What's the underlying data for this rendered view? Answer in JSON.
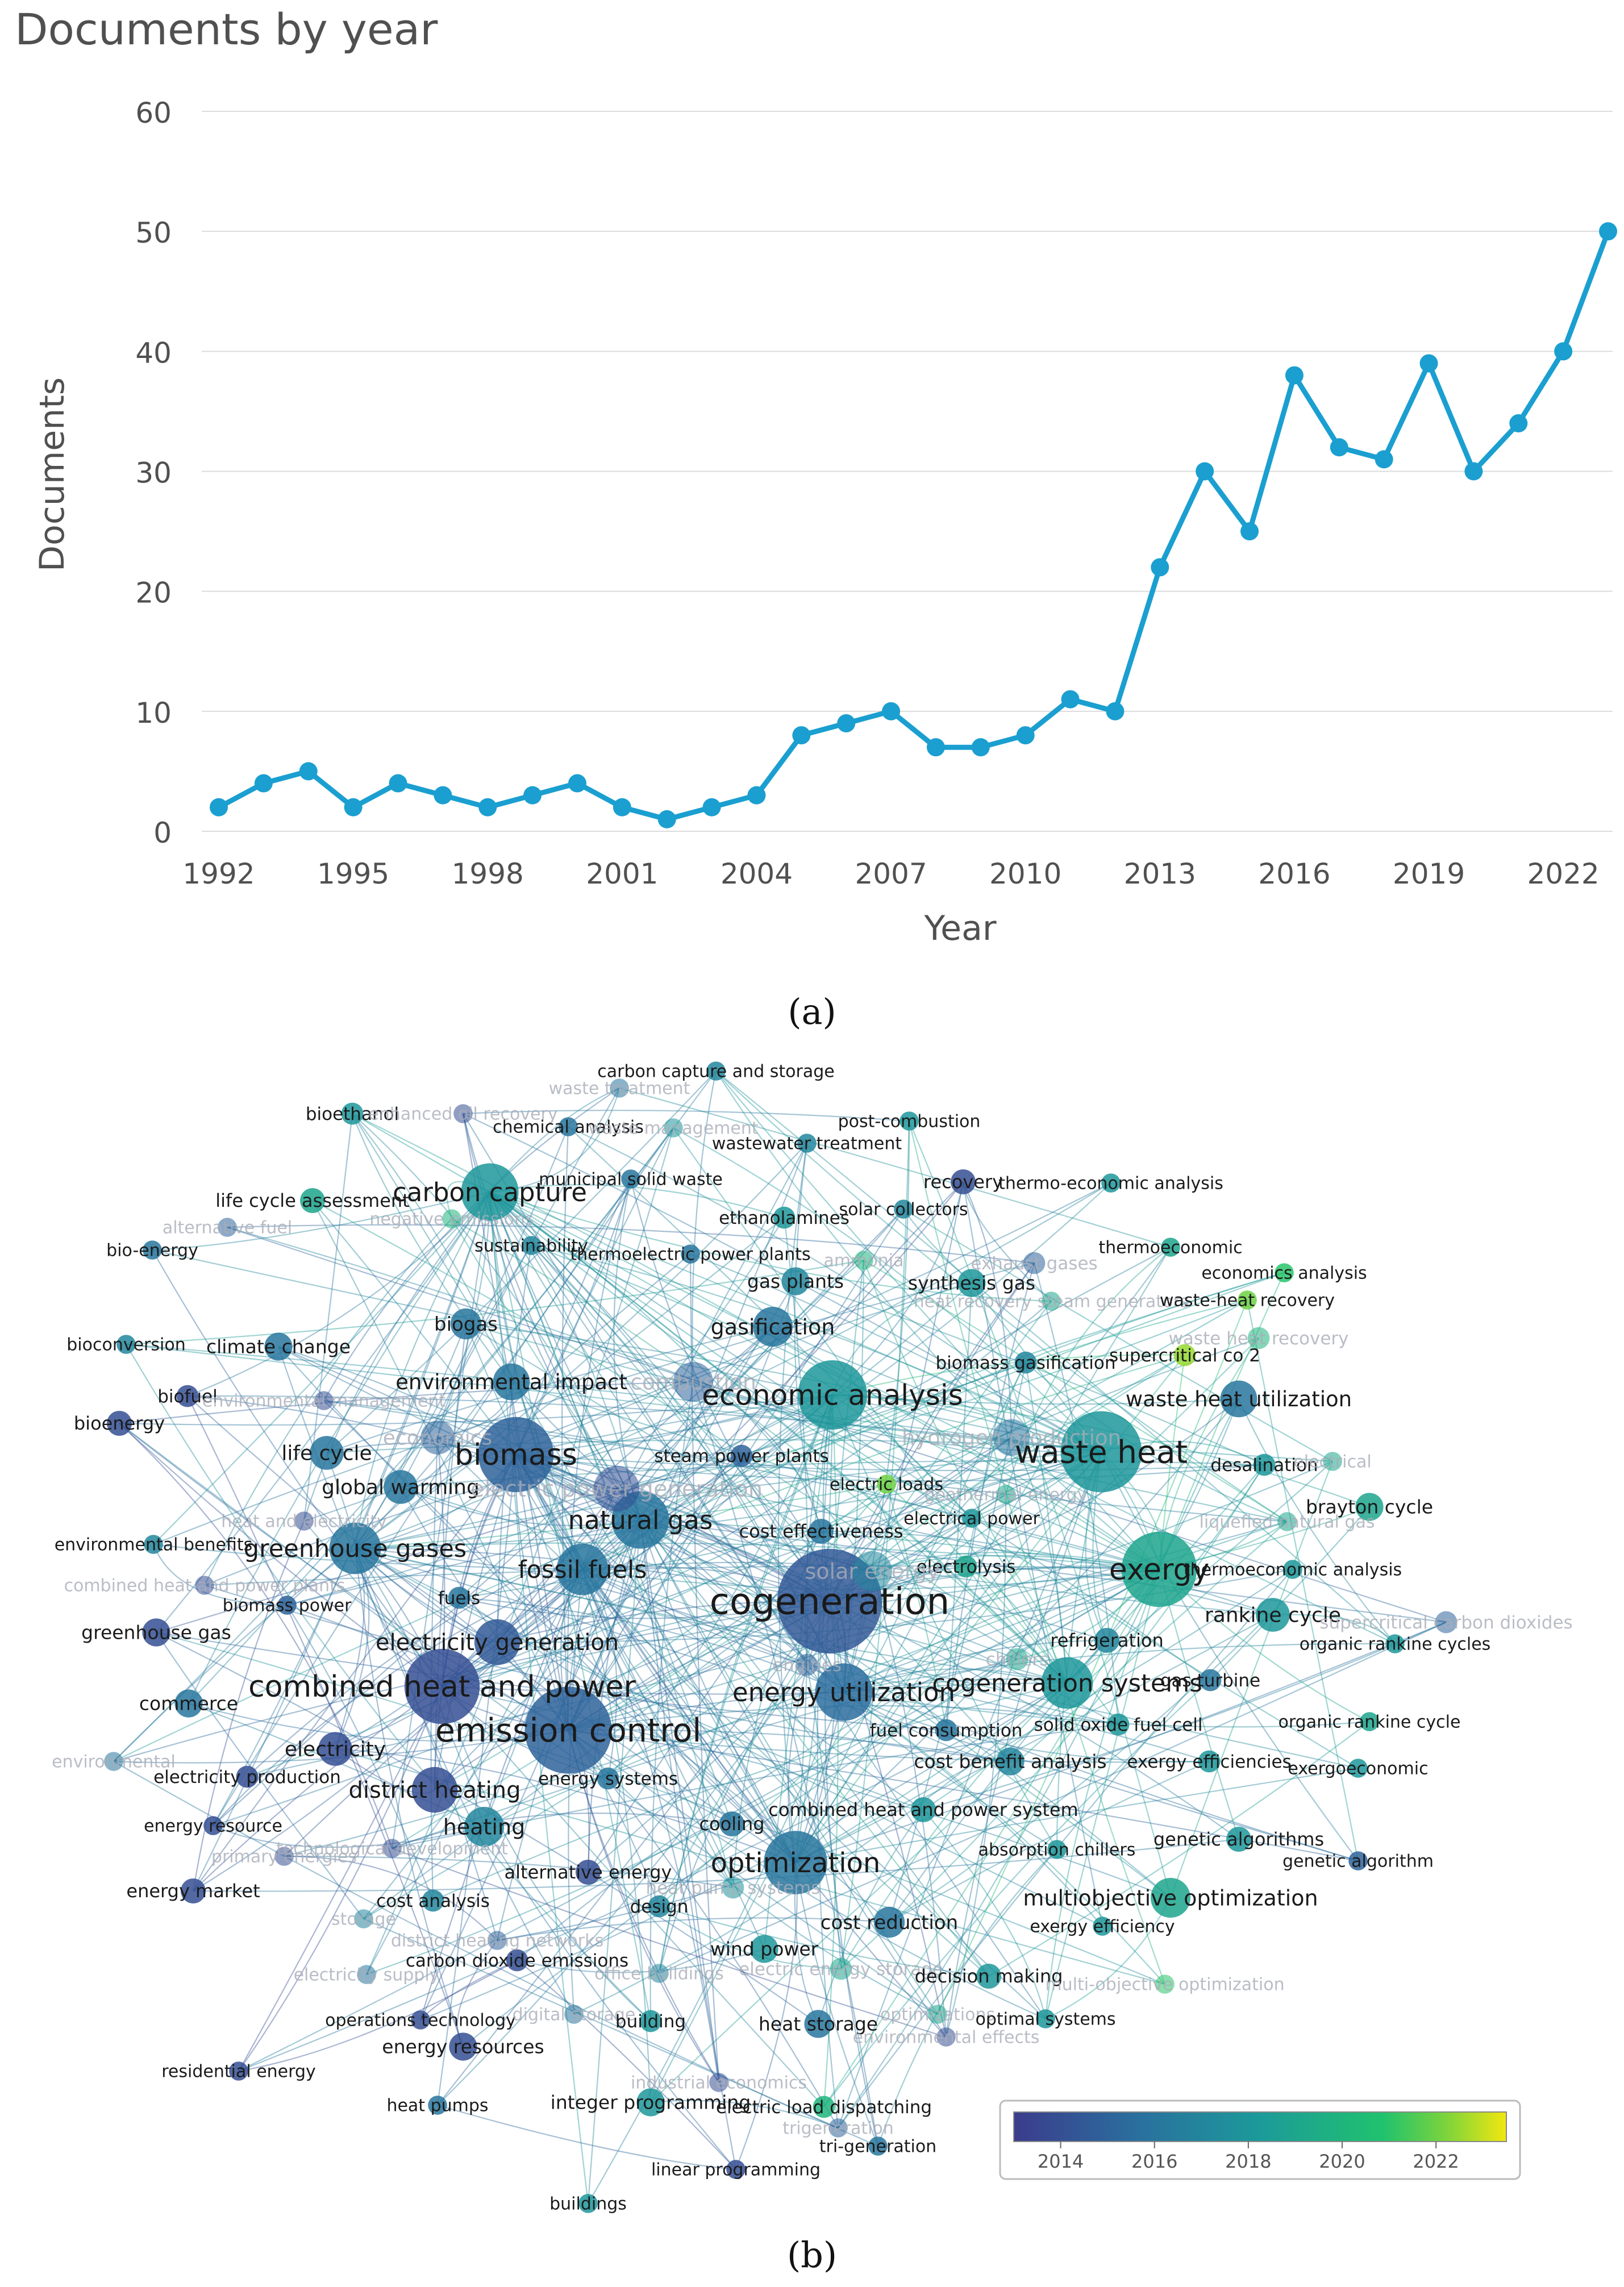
{
  "panel_a_label": "(a)",
  "panel_b_label": "(b)",
  "chart_data": [
    {
      "type": "line",
      "title": "Documents by year",
      "xlabel": "Year",
      "ylabel": "Documents",
      "x": [
        1992,
        1993,
        1994,
        1995,
        1996,
        1997,
        1998,
        1999,
        2000,
        2001,
        2002,
        2003,
        2004,
        2005,
        2006,
        2007,
        2008,
        2009,
        2010,
        2011,
        2012,
        2013,
        2014,
        2015,
        2016,
        2017,
        2018,
        2019,
        2020,
        2021,
        2022,
        2023
      ],
      "values": [
        2,
        4,
        5,
        2,
        4,
        3,
        2,
        3,
        4,
        2,
        1,
        2,
        3,
        8,
        9,
        10,
        7,
        7,
        8,
        11,
        10,
        22,
        30,
        25,
        38,
        32,
        31,
        39,
        30,
        34,
        40,
        50
      ],
      "xticks": [
        "1992",
        "1995",
        "1998",
        "2001",
        "2004",
        "2007",
        "2010",
        "2013",
        "2016",
        "2019",
        "2022"
      ],
      "yticks": [
        "0",
        "10",
        "20",
        "30",
        "40",
        "50",
        "60"
      ],
      "ylim": [
        0,
        60
      ],
      "color": "#1a9fd0",
      "grid": true
    },
    {
      "type": "network",
      "colorbar_ticks": [
        "2014",
        "2016",
        "2018",
        "2020",
        "2022"
      ],
      "colorbar_range": [
        2013,
        2023.5
      ],
      "nodes": [
        {
          "label": "carbon capture and storage",
          "year": 2017.0,
          "weight": 0.3
        },
        {
          "label": "waste treatment",
          "year": 2016.0,
          "weight": 0.3,
          "faded": true
        },
        {
          "label": "bioethanol",
          "year": 2018.0,
          "weight": 0.4
        },
        {
          "label": "enhanced oil recovery",
          "year": 2014.0,
          "weight": 0.3,
          "faded": true
        },
        {
          "label": "chemical analysis",
          "year": 2016.0,
          "weight": 0.3
        },
        {
          "label": "waste management",
          "year": 2018.0,
          "weight": 0.3,
          "faded": true
        },
        {
          "label": "post-combustion",
          "year": 2018.0,
          "weight": 0.3
        },
        {
          "label": "wastewater treatment",
          "year": 2017.0,
          "weight": 0.3
        },
        {
          "label": "life cycle assessment",
          "year": 2019.0,
          "weight": 0.5
        },
        {
          "label": "negative emissions",
          "year": 2020.0,
          "weight": 0.3,
          "faded": true
        },
        {
          "label": "carbon capture",
          "year": 2018.0,
          "weight": 1.6
        },
        {
          "label": "municipal solid waste",
          "year": 2016.0,
          "weight": 0.3
        },
        {
          "label": "ethanolamines",
          "year": 2018.0,
          "weight": 0.4
        },
        {
          "label": "recovery",
          "year": 2014.0,
          "weight": 0.5
        },
        {
          "label": "thermo-economic analysis",
          "year": 2018.0,
          "weight": 0.3
        },
        {
          "label": "alternative fuel",
          "year": 2015.0,
          "weight": 0.3,
          "faded": true
        },
        {
          "label": "solar collectors",
          "year": 2017.0,
          "weight": 0.3
        },
        {
          "label": "bio-energy",
          "year": 2016.0,
          "weight": 0.3
        },
        {
          "label": "sustainability",
          "year": 2017.0,
          "weight": 0.3
        },
        {
          "label": "thermoelectric power plants",
          "year": 2016.0,
          "weight": 0.3
        },
        {
          "label": "ammonia",
          "year": 2020.0,
          "weight": 0.3,
          "faded": true
        },
        {
          "label": "exhaust gases",
          "year": 2015.0,
          "weight": 0.4,
          "faded": true
        },
        {
          "label": "thermoeconomic",
          "year": 2019.0,
          "weight": 0.3
        },
        {
          "label": "gas plants",
          "year": 2017.0,
          "weight": 0.6
        },
        {
          "label": "synthesis gas",
          "year": 2018.0,
          "weight": 0.6
        },
        {
          "label": "economics analysis",
          "year": 2021.0,
          "weight": 0.3
        },
        {
          "label": "heat recovery steam generators",
          "year": 2019.0,
          "weight": 0.3,
          "faded": true
        },
        {
          "label": "waste-heat recovery",
          "year": 2022.0,
          "weight": 0.3
        },
        {
          "label": "bioconversion",
          "year": 2017.0,
          "weight": 0.3
        },
        {
          "label": "climate change",
          "year": 2016.0,
          "weight": 0.6
        },
        {
          "label": "biogas",
          "year": 2016.0,
          "weight": 0.7
        },
        {
          "label": "gasification",
          "year": 2016.0,
          "weight": 1.0
        },
        {
          "label": "waste heat recovery",
          "year": 2020.0,
          "weight": 0.4,
          "faded": true
        },
        {
          "label": "biomass gasification",
          "year": 2017.0,
          "weight": 0.4
        },
        {
          "label": "supercritical co 2",
          "year": 2022.5,
          "weight": 0.4
        },
        {
          "label": "biofuel",
          "year": 2014.0,
          "weight": 0.4
        },
        {
          "label": "environmental management",
          "year": 2014.0,
          "weight": 0.3,
          "faded": true
        },
        {
          "label": "environmental impact",
          "year": 2016.0,
          "weight": 0.9
        },
        {
          "label": "combustion",
          "year": 2015.0,
          "weight": 1.0,
          "faded": true
        },
        {
          "label": "economic analysis",
          "year": 2018.0,
          "weight": 2.0
        },
        {
          "label": "waste heat utilization",
          "year": 2016.0,
          "weight": 0.9
        },
        {
          "label": "bioenergy",
          "year": 2014.0,
          "weight": 0.5
        },
        {
          "label": "economics",
          "year": 2015.0,
          "weight": 0.8,
          "faded": true
        },
        {
          "label": "hydrogen production",
          "year": 2016.0,
          "weight": 0.9,
          "faded": true
        },
        {
          "label": "life cycle",
          "year": 2016.0,
          "weight": 0.8
        },
        {
          "label": "biomass",
          "year": 2015.0,
          "weight": 2.2
        },
        {
          "label": "steam power plants",
          "year": 2015.0,
          "weight": 0.4
        },
        {
          "label": "waste heat",
          "year": 2018.0,
          "weight": 2.4
        },
        {
          "label": "desalination",
          "year": 2018.0,
          "weight": 0.4
        },
        {
          "label": "electrical",
          "year": 2019.0,
          "weight": 0.3,
          "faded": true
        },
        {
          "label": "global warming",
          "year": 2016.0,
          "weight": 0.8
        },
        {
          "label": "electric power generation",
          "year": 2014.0,
          "weight": 1.2,
          "faded": true
        },
        {
          "label": "electric loads",
          "year": 2022.0,
          "weight": 0.3
        },
        {
          "label": "geothermal energy",
          "year": 2019.0,
          "weight": 0.3,
          "faded": true
        },
        {
          "label": "heat and electricity",
          "year": 2014.0,
          "weight": 0.3,
          "faded": true
        },
        {
          "label": "natural gas",
          "year": 2016.0,
          "weight": 1.6
        },
        {
          "label": "electrical power",
          "year": 2018.0,
          "weight": 0.3
        },
        {
          "label": "liquefied natural gas",
          "year": 2019.0,
          "weight": 0.3,
          "faded": true
        },
        {
          "label": "brayton cycle",
          "year": 2019.0,
          "weight": 0.6
        },
        {
          "label": "environmental benefits",
          "year": 2017.0,
          "weight": 0.3
        },
        {
          "label": "greenhouse gases",
          "year": 2016.0,
          "weight": 1.4
        },
        {
          "label": "cost effectiveness",
          "year": 2016.0,
          "weight": 0.5
        },
        {
          "label": "electrolysis",
          "year": 2019.0,
          "weight": 0.4
        },
        {
          "label": "combined heat and power plants",
          "year": 2014.0,
          "weight": 0.3,
          "faded": true
        },
        {
          "label": "fossil fuels",
          "year": 2016.0,
          "weight": 1.4
        },
        {
          "label": "solar energy",
          "year": 2017.0,
          "weight": 1.0,
          "faded": true
        },
        {
          "label": "exergy",
          "year": 2019.0,
          "weight": 2.2
        },
        {
          "label": "thermoeconomic analysis",
          "year": 2018.0,
          "weight": 0.3
        },
        {
          "label": "biomass power",
          "year": 2015.0,
          "weight": 0.3
        },
        {
          "label": "fuels",
          "year": 2016.0,
          "weight": 0.4
        },
        {
          "label": "cogeneration",
          "year": 2014.5,
          "weight": 3.2
        },
        {
          "label": "rankine cycle",
          "year": 2018.0,
          "weight": 0.8
        },
        {
          "label": "supercritical carbon dioxides",
          "year": 2015.0,
          "weight": 0.4,
          "faded": true
        },
        {
          "label": "greenhouse gas",
          "year": 2014.0,
          "weight": 0.6
        },
        {
          "label": "organic rankine cycles",
          "year": 2018.0,
          "weight": 0.3
        },
        {
          "label": "refrigeration",
          "year": 2017.0,
          "weight": 0.5
        },
        {
          "label": "electricity generation",
          "year": 2014.5,
          "weight": 1.2
        },
        {
          "label": "chillers",
          "year": 2019.0,
          "weight": 0.4,
          "faded": true
        },
        {
          "label": "engines",
          "year": 2015.0,
          "weight": 0.4,
          "faded": true
        },
        {
          "label": "combined heat and power",
          "year": 2014.0,
          "weight": 2.2
        },
        {
          "label": "commerce",
          "year": 2016.0,
          "weight": 0.6
        },
        {
          "label": "energy utilization",
          "year": 2015.5,
          "weight": 1.6
        },
        {
          "label": "cogeneration systems",
          "year": 2018.0,
          "weight": 1.4
        },
        {
          "label": "gas turbine",
          "year": 2016.0,
          "weight": 0.4
        },
        {
          "label": "organic rankine cycle",
          "year": 2019.0,
          "weight": 0.3
        },
        {
          "label": "fuel consumption",
          "year": 2016.0,
          "weight": 0.4
        },
        {
          "label": "solid oxide fuel cell",
          "year": 2018.0,
          "weight": 0.4
        },
        {
          "label": "emission control",
          "year": 2015.0,
          "weight": 2.6
        },
        {
          "label": "electricity",
          "year": 2014.0,
          "weight": 0.8
        },
        {
          "label": "cost benefit analysis",
          "year": 2017.0,
          "weight": 0.6
        },
        {
          "label": "exergy efficiencies",
          "year": 2018.0,
          "weight": 0.4
        },
        {
          "label": "exergoeconomic",
          "year": 2018.0,
          "weight": 0.3
        },
        {
          "label": "environmental",
          "year": 2016.0,
          "weight": 0.3,
          "faded": true
        },
        {
          "label": "electricity production",
          "year": 2014.0,
          "weight": 0.4
        },
        {
          "label": "district heating",
          "year": 2014.0,
          "weight": 1.2
        },
        {
          "label": "energy systems",
          "year": 2016.0,
          "weight": 0.4
        },
        {
          "label": "combined heat and power system",
          "year": 2018.0,
          "weight": 0.5
        },
        {
          "label": "energy resource",
          "year": 2014.0,
          "weight": 0.3
        },
        {
          "label": "technological development",
          "year": 2014.0,
          "weight": 0.3,
          "faded": true
        },
        {
          "label": "heating",
          "year": 2017.0,
          "weight": 1.0
        },
        {
          "label": "cooling",
          "year": 2016.0,
          "weight": 0.5
        },
        {
          "label": "absorption chillers",
          "year": 2018.0,
          "weight": 0.3
        },
        {
          "label": "genetic algorithms",
          "year": 2018.0,
          "weight": 0.5
        },
        {
          "label": "primary energies",
          "year": 2014.0,
          "weight": 0.3,
          "faded": true
        },
        {
          "label": "optimization",
          "year": 2016.0,
          "weight": 1.8
        },
        {
          "label": "genetic algorithm",
          "year": 2015.0,
          "weight": 0.3
        },
        {
          "label": "alternative energy",
          "year": 2014.0,
          "weight": 0.5
        },
        {
          "label": "energy market",
          "year": 2014.0,
          "weight": 0.5
        },
        {
          "label": "heat pump systems",
          "year": 2018.0,
          "weight": 0.4,
          "faded": true
        },
        {
          "label": "multiobjective optimization",
          "year": 2019.0,
          "weight": 1.0
        },
        {
          "label": "cost analysis",
          "year": 2017.0,
          "weight": 0.4
        },
        {
          "label": "design",
          "year": 2017.0,
          "weight": 0.4
        },
        {
          "label": "storage",
          "year": 2017.0,
          "weight": 0.3,
          "faded": true
        },
        {
          "label": "cost reduction",
          "year": 2016.0,
          "weight": 0.7
        },
        {
          "label": "exergy efficiency",
          "year": 2018.0,
          "weight": 0.3
        },
        {
          "label": "district heating networks",
          "year": 2015.0,
          "weight": 0.3,
          "faded": true
        },
        {
          "label": "wind power",
          "year": 2018.0,
          "weight": 0.6
        },
        {
          "label": "carbon dioxide emissions",
          "year": 2014.0,
          "weight": 0.4
        },
        {
          "label": "electricity supply",
          "year": 2016.0,
          "weight": 0.3,
          "faded": true
        },
        {
          "label": "office buildings",
          "year": 2017.0,
          "weight": 0.3,
          "faded": true
        },
        {
          "label": "electric energy storage",
          "year": 2019.0,
          "weight": 0.4,
          "faded": true
        },
        {
          "label": "decision making",
          "year": 2018.0,
          "weight": 0.5
        },
        {
          "label": "multi-objective optimization",
          "year": 2021.0,
          "weight": 0.3,
          "faded": true
        },
        {
          "label": "operations technology",
          "year": 2014.0,
          "weight": 0.3
        },
        {
          "label": "digital storage",
          "year": 2016.0,
          "weight": 0.3,
          "faded": true
        },
        {
          "label": "building",
          "year": 2018.0,
          "weight": 0.4
        },
        {
          "label": "heat storage",
          "year": 2016.0,
          "weight": 0.6
        },
        {
          "label": "optimizations",
          "year": 2019.0,
          "weight": 0.3,
          "faded": true
        },
        {
          "label": "optimal systems",
          "year": 2018.0,
          "weight": 0.3
        },
        {
          "label": "energy resources",
          "year": 2014.0,
          "weight": 0.6
        },
        {
          "label": "environmental effects",
          "year": 2014.0,
          "weight": 0.3,
          "faded": true
        },
        {
          "label": "residential energy",
          "year": 2014.0,
          "weight": 0.3
        },
        {
          "label": "industrial economics",
          "year": 2014.0,
          "weight": 0.3,
          "faded": true
        },
        {
          "label": "heat pumps",
          "year": 2016.0,
          "weight": 0.3
        },
        {
          "label": "integer programming",
          "year": 2018.0,
          "weight": 0.6
        },
        {
          "label": "electric load dispatching",
          "year": 2020.0,
          "weight": 0.4
        },
        {
          "label": "trigeneration",
          "year": 2015.0,
          "weight": 0.3,
          "faded": true
        },
        {
          "label": "tri-generation",
          "year": 2016.0,
          "weight": 0.3
        },
        {
          "label": "linear programming",
          "year": 2014.0,
          "weight": 0.3
        },
        {
          "label": "buildings",
          "year": 2018.0,
          "weight": 0.3
        }
      ]
    }
  ]
}
